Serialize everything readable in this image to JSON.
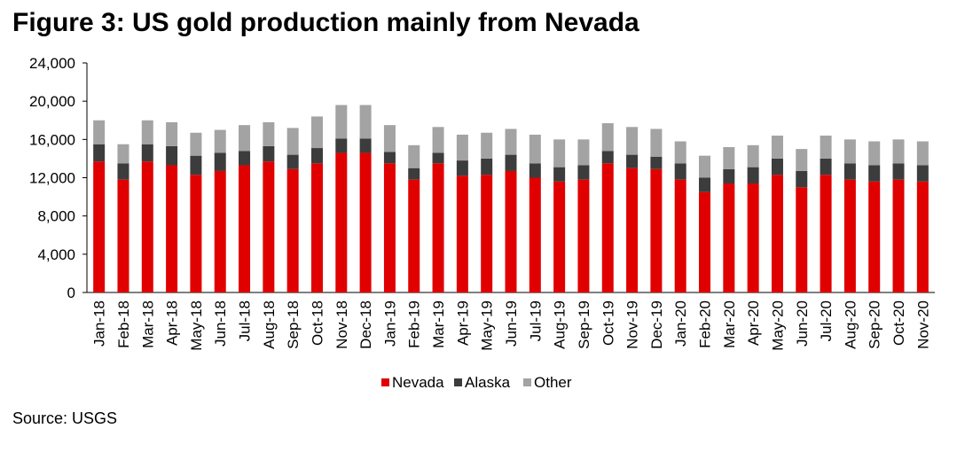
{
  "title": "Figure 3:  US gold production mainly from Nevada",
  "source": "Source: USGS",
  "chart_data": {
    "type": "bar",
    "stacked": true,
    "title": "Figure 3:  US gold production mainly from Nevada",
    "xlabel": "",
    "ylabel": "",
    "ylim": [
      0,
      24000
    ],
    "yticks": [
      "0",
      "4,000",
      "8,000",
      "12,000",
      "16,000",
      "20,000",
      "24,000"
    ],
    "ytick_values": [
      0,
      4000,
      8000,
      12000,
      16000,
      20000,
      24000
    ],
    "grid": false,
    "legend_position": "bottom",
    "categories": [
      "Jan-18",
      "Feb-18",
      "Mar-18",
      "Apr-18",
      "May-18",
      "Jun-18",
      "Jul-18",
      "Aug-18",
      "Sep-18",
      "Oct-18",
      "Nov-18",
      "Dec-18",
      "Jan-19",
      "Feb-19",
      "Mar-19",
      "Apr-19",
      "May-19",
      "Jun-19",
      "Jul-19",
      "Aug-19",
      "Sep-19",
      "Oct-19",
      "Nov-19",
      "Dec-19",
      "Jan-20",
      "Feb-20",
      "Mar-20",
      "Apr-20",
      "May-20",
      "Jun-20",
      "Jul-20",
      "Aug-20",
      "Sep-20",
      "Oct-20",
      "Nov-20"
    ],
    "series": [
      {
        "name": "Nevada",
        "color": "#e00000",
        "values": [
          13700,
          11800,
          13700,
          13300,
          12300,
          12700,
          13300,
          13700,
          12900,
          13500,
          14600,
          14600,
          13500,
          11800,
          13500,
          12200,
          12300,
          12700,
          12000,
          11600,
          11800,
          13500,
          13000,
          12900,
          11800,
          10500,
          11400,
          11400,
          12300,
          11000,
          12300,
          11800,
          11600,
          11800,
          11600
        ]
      },
      {
        "name": "Alaska",
        "color": "#3c3c3c",
        "values": [
          1800,
          1700,
          1800,
          2000,
          2000,
          1900,
          1500,
          1600,
          1500,
          1600,
          1500,
          1500,
          1200,
          1200,
          1100,
          1600,
          1700,
          1700,
          1500,
          1500,
          1500,
          1300,
          1400,
          1300,
          1700,
          1500,
          1500,
          1700,
          1700,
          1700,
          1700,
          1700,
          1700,
          1700,
          1700
        ]
      },
      {
        "name": "Other",
        "color": "#a3a3a3",
        "values": [
          2500,
          2000,
          2500,
          2500,
          2400,
          2400,
          2700,
          2500,
          2800,
          3300,
          3500,
          3500,
          2800,
          2400,
          2700,
          2700,
          2700,
          2700,
          3000,
          2900,
          2700,
          2900,
          2900,
          2900,
          2300,
          2300,
          2300,
          2300,
          2400,
          2300,
          2400,
          2500,
          2500,
          2500,
          2500
        ]
      }
    ]
  }
}
